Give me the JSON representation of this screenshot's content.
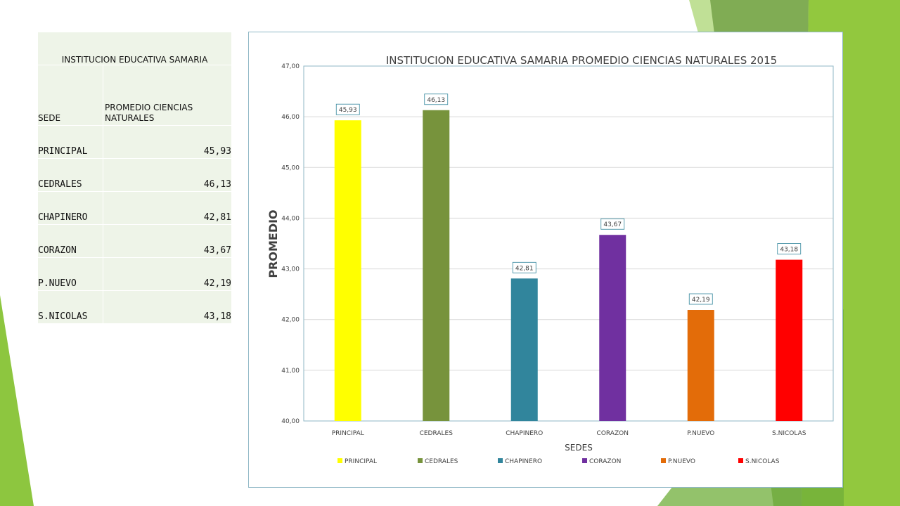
{
  "table": {
    "title": "INSTITUCION EDUCATIVA SAMARIA",
    "header_sede": "SEDE",
    "header_value": "PROMEDIO CIENCIAS NATURALES",
    "rows": [
      {
        "sede": "PRINCIPAL",
        "value": "45,93"
      },
      {
        "sede": "CEDRALES",
        "value": "46,13"
      },
      {
        "sede": "CHAPINERO",
        "value": "42,81"
      },
      {
        "sede": "CORAZON",
        "value": "43,67"
      },
      {
        "sede": "P.NUEVO",
        "value": "42,19"
      },
      {
        "sede": "S.NICOLAS",
        "value": "43,18"
      }
    ]
  },
  "chart_data": {
    "type": "bar",
    "title": "INSTITUCION EDUCATIVA SAMARIA PROMEDIO CIENCIAS NATURALES 2015",
    "xlabel": "SEDES",
    "ylabel": "PROMEDIO",
    "categories": [
      "PRINCIPAL",
      "CEDRALES",
      "CHAPINERO",
      "CORAZON",
      "P.NUEVO",
      "S.NICOLAS"
    ],
    "values": [
      45.93,
      46.13,
      42.81,
      43.67,
      42.19,
      43.18
    ],
    "data_labels": [
      "45,93",
      "46,13",
      "42,81",
      "43,67",
      "42,19",
      "43,18"
    ],
    "colors": [
      "#ffff00",
      "#77933c",
      "#31859c",
      "#7030a0",
      "#e36c09",
      "#ff0000"
    ],
    "ylim": [
      40,
      47
    ],
    "yticks": [
      "40,00",
      "41,00",
      "42,00",
      "43,00",
      "44,00",
      "45,00",
      "46,00",
      "47,00"
    ],
    "grid": true,
    "legend_position": "bottom",
    "legend": [
      "PRINCIPAL",
      "CEDRALES",
      "CHAPINERO",
      "CORAZON",
      "P.NUEVO",
      "S.NICOLAS"
    ]
  },
  "theme": {
    "accent_green": "#8dc63f",
    "dark_green": "#6f9f43",
    "table_bg": "#eef4e8"
  }
}
